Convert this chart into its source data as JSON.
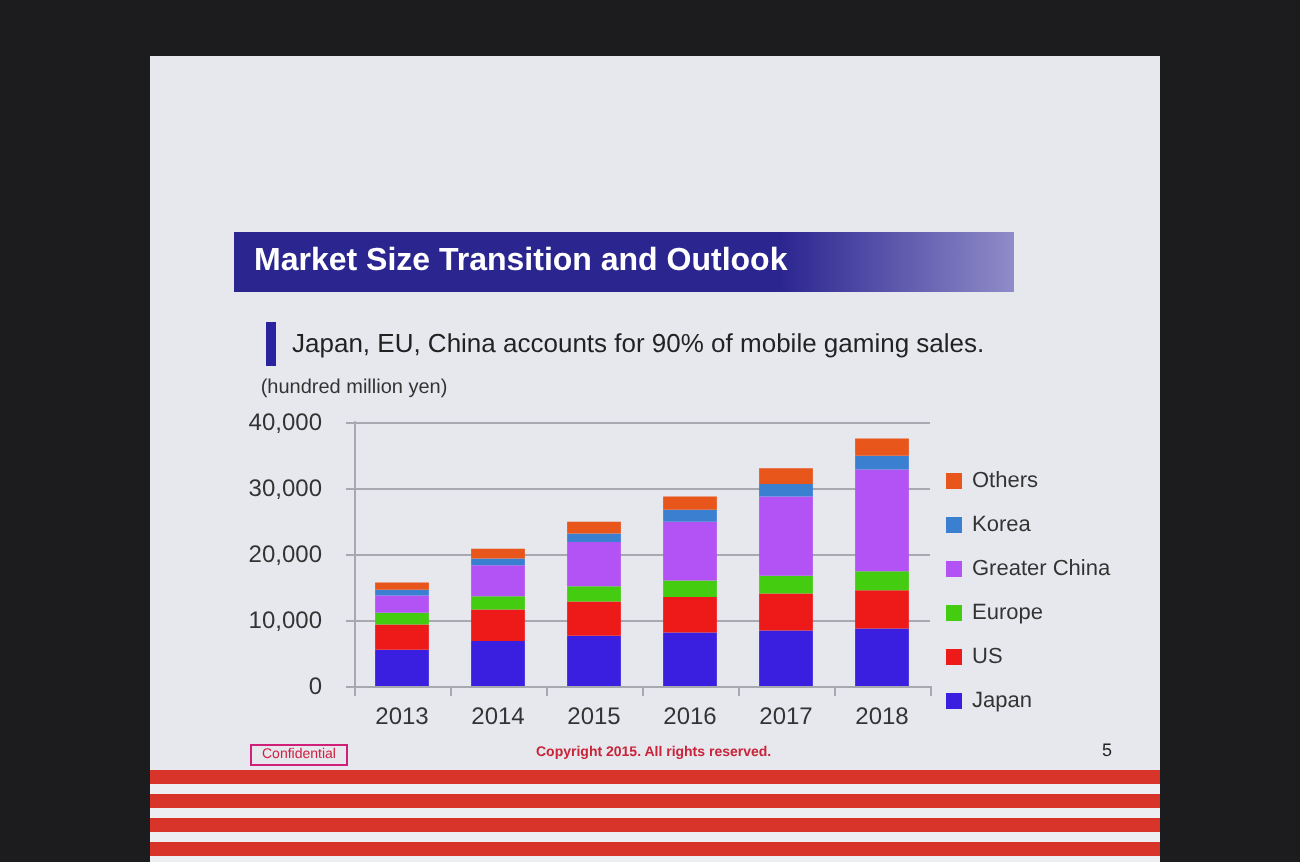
{
  "chart_data": {
    "type": "bar",
    "stacked": true,
    "title": "Market Size Transition and Outlook",
    "subtitle": "Japan, EU, China accounts for 90% of mobile gaming sales.",
    "ylabel": "(hundred million yen)",
    "categories": [
      "2013",
      "2014",
      "2015",
      "2016",
      "2017",
      "2018"
    ],
    "series": [
      {
        "name": "Japan",
        "color": "#3b1fe0",
        "values": [
          5500,
          6800,
          7600,
          8100,
          8400,
          8700
        ]
      },
      {
        "name": "US",
        "color": "#ee1a1a",
        "values": [
          3800,
          4800,
          5200,
          5400,
          5600,
          5800
        ]
      },
      {
        "name": "Europe",
        "color": "#44cc11",
        "values": [
          1800,
          2000,
          2300,
          2500,
          2700,
          2900
        ]
      },
      {
        "name": "Greater China",
        "color": "#b352f5",
        "values": [
          2600,
          4700,
          6700,
          8900,
          12000,
          15400
        ]
      },
      {
        "name": "Korea",
        "color": "#3a7fd0",
        "values": [
          900,
          1000,
          1300,
          1800,
          1900,
          2100
        ]
      },
      {
        "name": "Others",
        "color": "#e8561c",
        "values": [
          1100,
          1500,
          1800,
          2000,
          2400,
          2600
        ]
      }
    ],
    "ylim": [
      0,
      40000
    ],
    "yticks": [
      0,
      {
        "value": 10000,
        "label": "10,000"
      },
      {
        "value": 20000,
        "label": "20,000"
      },
      {
        "value": 30000,
        "label": "30,000"
      },
      {
        "value": 40000,
        "label": "40,000"
      }
    ],
    "grid": "y",
    "legend": "right",
    "annotations": [
      "Confidential",
      "Copyright 2015. All rights reserved.",
      "5"
    ]
  }
}
